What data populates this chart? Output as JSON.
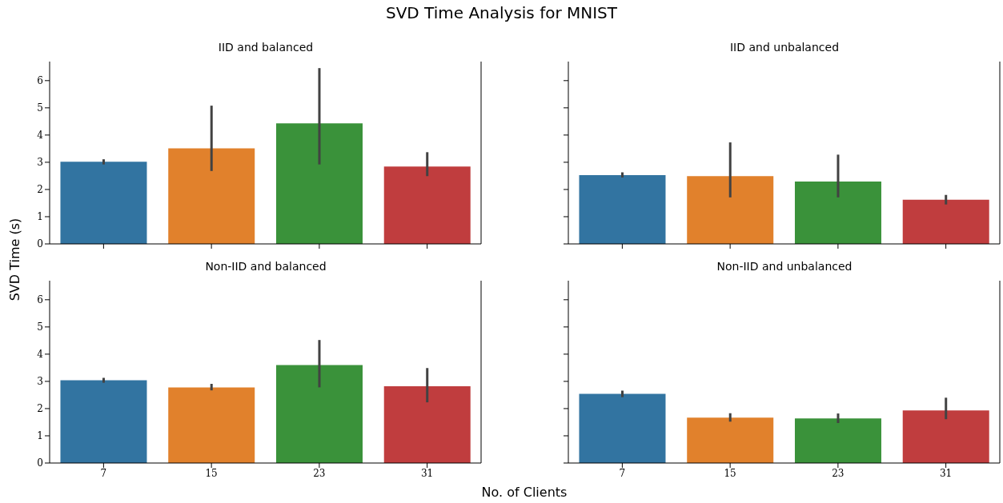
{
  "chart_data": [
    {
      "type": "bar",
      "title": "IID and balanced",
      "annotations": [
        "SVD Time Analysis for MNIST"
      ],
      "ylabel": "SVD Time (s)",
      "categories": [
        "7",
        "15",
        "23",
        "31"
      ],
      "values": [
        3.02,
        3.51,
        4.43,
        2.84
      ],
      "colors": [
        "#3274a1",
        "#e1812c",
        "#3a923a",
        "#c03d3e"
      ],
      "errors": [
        [
          2.92,
          3.11
        ],
        [
          2.68,
          5.08
        ],
        [
          2.92,
          6.46
        ],
        [
          2.49,
          3.37
        ]
      ],
      "ylim": [
        0,
        6.7
      ],
      "yticks": [
        0,
        1,
        2,
        3,
        4,
        5,
        6
      ],
      "tick_labels": "y"
    },
    {
      "type": "bar",
      "title": "IID and unbalanced",
      "categories": [
        "7",
        "15",
        "23",
        "31"
      ],
      "values": [
        2.53,
        2.49,
        2.29,
        1.62
      ],
      "colors": [
        "#3274a1",
        "#e1812c",
        "#3a923a",
        "#c03d3e"
      ],
      "errors": [
        [
          2.44,
          2.63
        ],
        [
          1.71,
          3.73
        ],
        [
          1.71,
          3.28
        ],
        [
          1.45,
          1.8
        ]
      ],
      "ylim": [
        0,
        6.7
      ],
      "yticks": [
        0,
        1,
        2,
        3,
        4,
        5,
        6
      ],
      "tick_labels": false
    },
    {
      "type": "bar",
      "title": "Non-IID and balanced",
      "xlabel": "No. of Clients",
      "categories": [
        "7",
        "15",
        "23",
        "31"
      ],
      "values": [
        3.04,
        2.78,
        3.6,
        2.82
      ],
      "colors": [
        "#3274a1",
        "#e1812c",
        "#3a923a",
        "#c03d3e"
      ],
      "errors": [
        [
          2.95,
          3.13
        ],
        [
          2.67,
          2.91
        ],
        [
          2.78,
          4.52
        ],
        [
          2.23,
          3.49
        ]
      ],
      "ylim": [
        0,
        6.7
      ],
      "yticks": [
        0,
        1,
        2,
        3,
        4,
        5,
        6
      ]
    },
    {
      "type": "bar",
      "title": "Non-IID and unbalanced",
      "categories": [
        "7",
        "15",
        "23",
        "31"
      ],
      "values": [
        2.54,
        1.67,
        1.64,
        1.93
      ],
      "colors": [
        "#3274a1",
        "#e1812c",
        "#3a923a",
        "#c03d3e"
      ],
      "errors": [
        [
          2.42,
          2.66
        ],
        [
          1.52,
          1.83
        ],
        [
          1.47,
          1.82
        ],
        [
          1.61,
          2.4
        ]
      ],
      "ylim": [
        0,
        6.7
      ],
      "yticks": [
        0,
        1,
        2,
        3,
        4,
        5,
        6
      ],
      "tick_labels": "x"
    }
  ]
}
